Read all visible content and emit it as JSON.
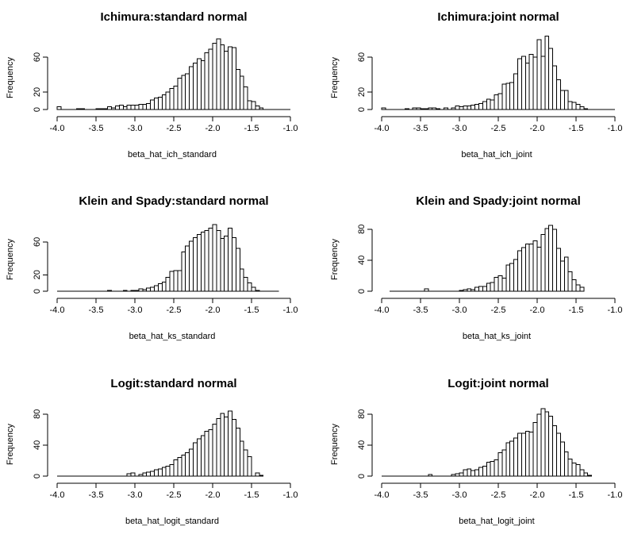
{
  "chart_data": [
    {
      "type": "bar",
      "title": "Ichimura:standard normal",
      "xlabel": "beta_hat_ich_standard",
      "ylabel": "Frequency",
      "xlim": [
        -4.0,
        -1.0
      ],
      "xticks": [
        "-4.0",
        "-3.5",
        "-3.0",
        "-2.5",
        "-2.0",
        "-1.5",
        "-1.0"
      ],
      "yticks": [
        "0",
        "20",
        "60"
      ],
      "ytick_values": [
        0,
        20,
        60
      ],
      "ymax": 80,
      "bin_width": 0.05,
      "bins_start": [
        -4.0,
        -3.75,
        -3.7,
        -3.5,
        -3.45,
        -3.4,
        -3.35,
        -3.3,
        -3.25,
        -3.2,
        -3.15,
        -3.1,
        -3.05,
        -3.0,
        -2.95,
        -2.9,
        -2.85,
        -2.8,
        -2.75,
        -2.7,
        -2.65,
        -2.6,
        -2.55,
        -2.5,
        -2.45,
        -2.4,
        -2.35,
        -2.3,
        -2.25,
        -2.2,
        -2.15,
        -2.1,
        -2.05,
        -2.0,
        -1.95,
        -1.9,
        -1.85,
        -1.8,
        -1.75,
        -1.7,
        -1.65,
        -1.6,
        -1.55,
        -1.5,
        -1.45,
        -1.4,
        -1.35
      ],
      "values": [
        3,
        1,
        1,
        1,
        1,
        1,
        3,
        2,
        4,
        5,
        3,
        5,
        5,
        5,
        6,
        6,
        7,
        11,
        13,
        14,
        17,
        20,
        24,
        27,
        36,
        39,
        41,
        49,
        53,
        58,
        56,
        65,
        69,
        76,
        81,
        74,
        67,
        72,
        71,
        46,
        38,
        26,
        10,
        9,
        4,
        2,
        0
      ]
    },
    {
      "type": "bar",
      "title": "Ichimura:joint normal",
      "xlabel": "beta_hat_ich_joint",
      "ylabel": "Frequency",
      "xlim": [
        -4.0,
        -1.0
      ],
      "xticks": [
        "-4.0",
        "-3.5",
        "-3.0",
        "-2.5",
        "-2.0",
        "-1.5",
        "-1.0"
      ],
      "yticks": [
        "0",
        "20",
        "60"
      ],
      "ytick_values": [
        0,
        20,
        60
      ],
      "ymax": 80,
      "bin_width": 0.05,
      "bins_start": [
        -4.0,
        -3.7,
        -3.6,
        -3.55,
        -3.5,
        -3.45,
        -3.4,
        -3.35,
        -3.3,
        -3.2,
        -3.1,
        -3.05,
        -3.0,
        -2.95,
        -2.9,
        -2.85,
        -2.8,
        -2.75,
        -2.7,
        -2.65,
        -2.6,
        -2.55,
        -2.5,
        -2.45,
        -2.4,
        -2.35,
        -2.3,
        -2.25,
        -2.2,
        -2.15,
        -2.1,
        -2.05,
        -2.0,
        -1.95,
        -1.9,
        -1.85,
        -1.8,
        -1.75,
        -1.7,
        -1.65,
        -1.6,
        -1.55,
        -1.5,
        -1.45,
        -1.4
      ],
      "values": [
        2,
        1,
        2,
        2,
        1,
        1,
        2,
        2,
        1,
        2,
        2,
        4,
        3,
        4,
        4,
        5,
        6,
        7,
        9,
        12,
        11,
        17,
        18,
        29,
        30,
        31,
        41,
        58,
        61,
        53,
        63,
        60,
        80,
        61,
        84,
        70,
        50,
        34,
        22,
        22,
        9,
        8,
        6,
        3,
        1
      ]
    },
    {
      "type": "bar",
      "title": "Klein and Spady:standard normal",
      "xlabel": "beta_hat_ks_standard",
      "ylabel": "Frequency",
      "xlim": [
        -4.0,
        -1.0
      ],
      "xticks": [
        "-4.0",
        "-3.5",
        "-3.0",
        "-2.5",
        "-2.0",
        "-1.5",
        "-1.0"
      ],
      "yticks": [
        "0",
        "20",
        "60"
      ],
      "ytick_values": [
        0,
        20,
        60
      ],
      "ymax": 85,
      "baseline_xlim": [
        -4.0,
        -1.15
      ],
      "bin_width": 0.05,
      "bins_start": [
        -3.35,
        -3.15,
        -3.05,
        -3.0,
        -2.95,
        -2.9,
        -2.85,
        -2.8,
        -2.75,
        -2.7,
        -2.65,
        -2.6,
        -2.55,
        -2.5,
        -2.45,
        -2.4,
        -2.35,
        -2.3,
        -2.25,
        -2.2,
        -2.15,
        -2.1,
        -2.05,
        -2.0,
        -1.95,
        -1.9,
        -1.85,
        -1.8,
        -1.75,
        -1.7,
        -1.65,
        -1.6,
        -1.55,
        -1.5,
        -1.45
      ],
      "values": [
        1,
        1,
        1,
        1,
        3,
        2,
        4,
        5,
        7,
        9,
        11,
        17,
        24,
        25,
        25,
        48,
        55,
        61,
        65,
        69,
        72,
        74,
        77,
        81,
        74,
        64,
        67,
        77,
        65,
        52,
        27,
        17,
        10,
        5,
        1
      ]
    },
    {
      "type": "bar",
      "title": "Klein and Spady:joint normal",
      "xlabel": "beta_hat_ks_joint",
      "ylabel": "Frequency",
      "xlim": [
        -4.0,
        -1.0
      ],
      "xticks": [
        "-4.0",
        "-3.5",
        "-3.0",
        "-2.5",
        "-2.0",
        "-1.5",
        "-1.0"
      ],
      "yticks": [
        "0",
        "40",
        "80"
      ],
      "ytick_values": [
        0,
        40,
        80
      ],
      "ymax": 90,
      "baseline_xlim": [
        -3.9,
        -1.4
      ],
      "bin_width": 0.05,
      "bins_start": [
        -3.45,
        -3.0,
        -2.95,
        -2.9,
        -2.85,
        -2.8,
        -2.75,
        -2.7,
        -2.65,
        -2.6,
        -2.55,
        -2.5,
        -2.45,
        -2.4,
        -2.35,
        -2.3,
        -2.25,
        -2.2,
        -2.15,
        -2.1,
        -2.05,
        -2.0,
        -1.95,
        -1.9,
        -1.85,
        -1.8,
        -1.75,
        -1.7,
        -1.65,
        -1.6,
        -1.55,
        -1.5,
        -1.45
      ],
      "values": [
        3,
        1,
        2,
        3,
        2,
        5,
        6,
        6,
        10,
        11,
        18,
        20,
        17,
        34,
        36,
        41,
        52,
        56,
        61,
        61,
        65,
        57,
        73,
        81,
        85,
        80,
        55,
        39,
        44,
        25,
        15,
        8,
        5
      ]
    },
    {
      "type": "bar",
      "title": "Logit:standard normal",
      "xlabel": "beta_hat_logit_standard",
      "ylabel": "Frequency",
      "xlim": [
        -4.0,
        -1.0
      ],
      "xticks": [
        "-4.0",
        "-3.5",
        "-3.0",
        "-2.5",
        "-2.0",
        "-1.5",
        "-1.0"
      ],
      "yticks": [
        "0",
        "40",
        "80"
      ],
      "ytick_values": [
        0,
        40,
        80
      ],
      "ymax": 90,
      "baseline_xlim": [
        -4.0,
        -1.35
      ],
      "bin_width": 0.05,
      "bins_start": [
        -3.1,
        -3.05,
        -2.95,
        -2.9,
        -2.85,
        -2.8,
        -2.75,
        -2.7,
        -2.65,
        -2.6,
        -2.55,
        -2.5,
        -2.45,
        -2.4,
        -2.35,
        -2.3,
        -2.25,
        -2.2,
        -2.15,
        -2.1,
        -2.05,
        -2.0,
        -1.95,
        -1.9,
        -1.85,
        -1.8,
        -1.75,
        -1.7,
        -1.65,
        -1.6,
        -1.55,
        -1.45,
        -1.4
      ],
      "values": [
        3,
        4,
        2,
        4,
        5,
        6,
        8,
        9,
        11,
        13,
        15,
        21,
        24,
        27,
        30,
        35,
        43,
        48,
        52,
        58,
        60,
        67,
        74,
        81,
        76,
        84,
        73,
        62,
        45,
        34,
        25,
        4,
        1
      ]
    },
    {
      "type": "bar",
      "title": "Logit:joint normal",
      "xlabel": "beta_hat_logit_joint",
      "ylabel": "Frequency",
      "xlim": [
        -4.0,
        -1.0
      ],
      "xticks": [
        "-4.0",
        "-3.5",
        "-3.0",
        "-2.5",
        "-2.0",
        "-1.5",
        "-1.0"
      ],
      "yticks": [
        "0",
        "40",
        "80"
      ],
      "ytick_values": [
        0,
        40,
        80
      ],
      "ymax": 90,
      "baseline_xlim": [
        -4.0,
        -1.3
      ],
      "bin_width": 0.05,
      "bins_start": [
        -3.4,
        -3.1,
        -3.05,
        -3.0,
        -2.95,
        -2.9,
        -2.85,
        -2.8,
        -2.75,
        -2.7,
        -2.65,
        -2.6,
        -2.55,
        -2.5,
        -2.45,
        -2.4,
        -2.35,
        -2.3,
        -2.25,
        -2.2,
        -2.15,
        -2.1,
        -2.05,
        -2.0,
        -1.95,
        -1.9,
        -1.85,
        -1.8,
        -1.75,
        -1.7,
        -1.65,
        -1.6,
        -1.55,
        -1.5,
        -1.45,
        -1.4,
        -1.35
      ],
      "values": [
        2,
        2,
        3,
        4,
        8,
        9,
        7,
        8,
        11,
        13,
        18,
        19,
        21,
        30,
        34,
        43,
        45,
        49,
        55,
        55,
        58,
        57,
        69,
        80,
        87,
        83,
        77,
        65,
        55,
        44,
        31,
        22,
        17,
        15,
        8,
        4,
        1
      ]
    }
  ]
}
